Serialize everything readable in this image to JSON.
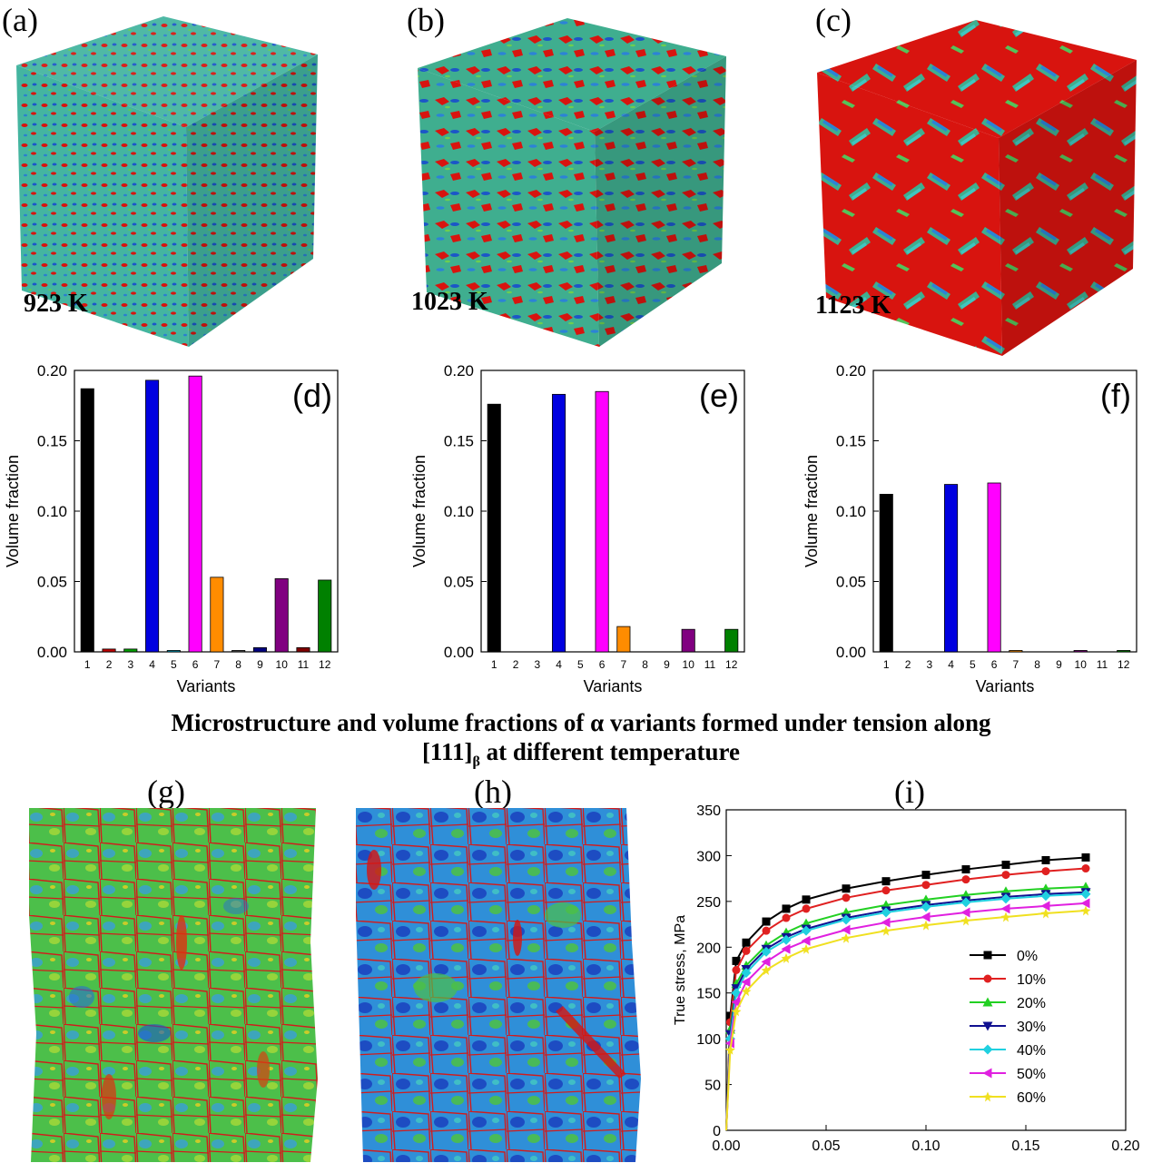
{
  "panels": {
    "a": {
      "label": "(a)",
      "temperature": "923 K"
    },
    "b": {
      "label": "(b)",
      "temperature": "1023 K"
    },
    "c": {
      "label": "(c)",
      "temperature": "1123 K"
    },
    "g": {
      "label": "(g)"
    },
    "h": {
      "label": "(h)"
    },
    "i": {
      "label": "(i)"
    }
  },
  "caption": {
    "line1": "Microstructure and volume fractions of α variants formed under tension along",
    "line2_main": "[111]",
    "line2_sub": "β",
    "line2_rest": " at different temperature"
  },
  "colors": {
    "microstructure_red": "#d8140f",
    "microstructure_green": "#42b25a",
    "microstructure_cyan": "#41c6c0",
    "microstructure_blue": "#1b56c8",
    "grain_boundary": "#d21b1b"
  },
  "chart_data": [
    {
      "type": "bar",
      "panel": "(d)",
      "xlabel": "Variants",
      "ylabel": "Volume fraction",
      "ylim": [
        0,
        0.2
      ],
      "yticks": [
        "0.00",
        "0.05",
        "0.10",
        "0.15",
        "0.20"
      ],
      "categories": [
        "1",
        "2",
        "3",
        "4",
        "5",
        "6",
        "7",
        "8",
        "9",
        "10",
        "11",
        "12"
      ],
      "values": [
        0.187,
        0.002,
        0.002,
        0.193,
        0.001,
        0.196,
        0.053,
        0.001,
        0.003,
        0.052,
        0.003,
        0.051
      ],
      "bar_colors": [
        "#000000",
        "#c00000",
        "#00a000",
        "#0000e0",
        "#00a0c0",
        "#ff00ff",
        "#ff8c00",
        "#505050",
        "#000080",
        "#800080",
        "#800000",
        "#008000"
      ]
    },
    {
      "type": "bar",
      "panel": "(e)",
      "xlabel": "Variants",
      "ylabel": "Volume fraction",
      "ylim": [
        0,
        0.2
      ],
      "yticks": [
        "0.00",
        "0.05",
        "0.10",
        "0.15",
        "0.20"
      ],
      "categories": [
        "1",
        "2",
        "3",
        "4",
        "5",
        "6",
        "7",
        "8",
        "9",
        "10",
        "11",
        "12"
      ],
      "values": [
        0.176,
        0,
        0,
        0.183,
        0,
        0.185,
        0.018,
        0,
        0,
        0.016,
        0,
        0.016
      ],
      "bar_colors": [
        "#000000",
        "#c00000",
        "#00a000",
        "#0000e0",
        "#00a0c0",
        "#ff00ff",
        "#ff8c00",
        "#505050",
        "#000080",
        "#800080",
        "#800000",
        "#008000"
      ]
    },
    {
      "type": "bar",
      "panel": "(f)",
      "xlabel": "Variants",
      "ylabel": "Volume fraction",
      "ylim": [
        0,
        0.2
      ],
      "yticks": [
        "0.00",
        "0.05",
        "0.10",
        "0.15",
        "0.20"
      ],
      "categories": [
        "1",
        "2",
        "3",
        "4",
        "5",
        "6",
        "7",
        "8",
        "9",
        "10",
        "11",
        "12"
      ],
      "values": [
        0.112,
        0,
        0,
        0.119,
        0,
        0.12,
        0.001,
        0,
        0,
        0.001,
        0,
        0.001
      ],
      "bar_colors": [
        "#000000",
        "#c00000",
        "#00a000",
        "#0000e0",
        "#00a0c0",
        "#ff00ff",
        "#ff8c00",
        "#505050",
        "#000080",
        "#800080",
        "#800000",
        "#008000"
      ]
    },
    {
      "type": "line",
      "panel": "(i)",
      "xlabel": "",
      "ylabel": "True stress, MPa",
      "xlim": [
        0,
        0.2
      ],
      "ylim": [
        0,
        350
      ],
      "xticks": [
        "0.00",
        "0.05",
        "0.10",
        "0.15",
        "0.20"
      ],
      "yticks": [
        "0",
        "50",
        "100",
        "150",
        "200",
        "250",
        "300",
        "350"
      ],
      "legend_position": "bottom-right",
      "x": [
        0,
        0.002,
        0.005,
        0.01,
        0.02,
        0.03,
        0.04,
        0.06,
        0.08,
        0.1,
        0.12,
        0.14,
        0.16,
        0.18
      ],
      "series": [
        {
          "name": "0%",
          "color": "#000000",
          "marker": "square",
          "values": [
            0,
            125,
            185,
            205,
            228,
            242,
            252,
            264,
            272,
            279,
            285,
            290,
            295,
            298
          ]
        },
        {
          "name": "10%",
          "color": "#e02020",
          "marker": "circle",
          "values": [
            0,
            118,
            175,
            196,
            218,
            232,
            242,
            254,
            262,
            268,
            274,
            279,
            283,
            286
          ]
        },
        {
          "name": "20%",
          "color": "#22d022",
          "marker": "triangle",
          "values": [
            0,
            110,
            160,
            180,
            202,
            216,
            226,
            238,
            246,
            252,
            257,
            261,
            264,
            266
          ]
        },
        {
          "name": "30%",
          "color": "#101090",
          "marker": "tri-down",
          "values": [
            0,
            105,
            155,
            176,
            198,
            211,
            220,
            232,
            240,
            246,
            251,
            255,
            258,
            260
          ]
        },
        {
          "name": "40%",
          "color": "#20d0e0",
          "marker": "diamond",
          "values": [
            0,
            100,
            150,
            172,
            195,
            208,
            218,
            230,
            238,
            244,
            249,
            253,
            256,
            258
          ]
        },
        {
          "name": "50%",
          "color": "#e020e0",
          "marker": "tri-left",
          "values": [
            0,
            95,
            140,
            162,
            184,
            198,
            207,
            219,
            227,
            233,
            238,
            242,
            245,
            248
          ]
        },
        {
          "name": "60%",
          "color": "#f0e020",
          "marker": "star",
          "values": [
            0,
            88,
            130,
            152,
            175,
            188,
            198,
            210,
            218,
            224,
            229,
            233,
            237,
            240
          ]
        }
      ]
    }
  ]
}
